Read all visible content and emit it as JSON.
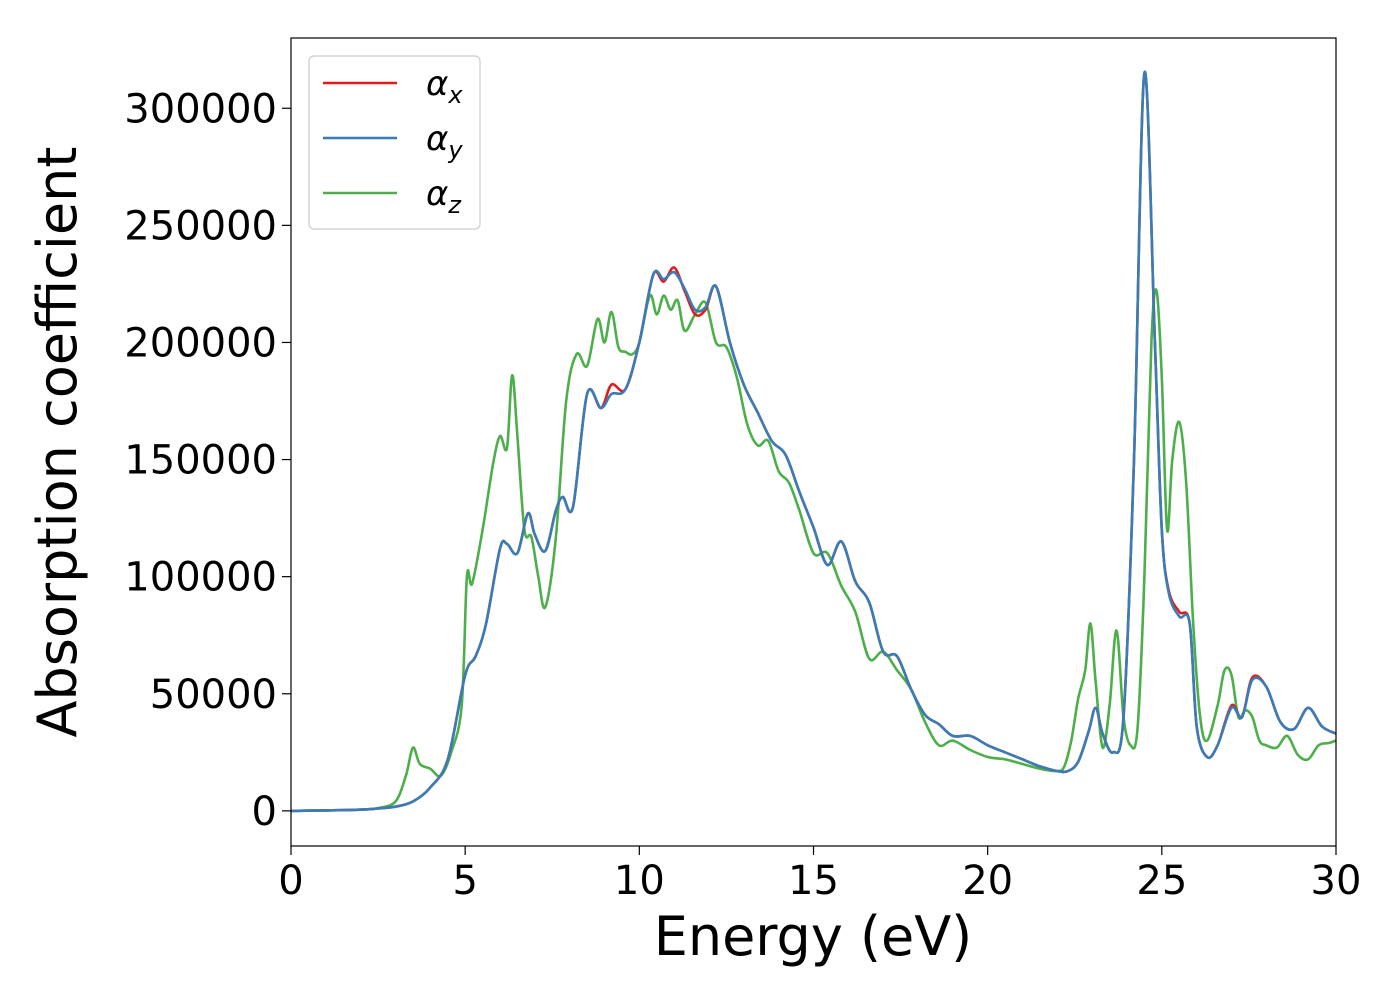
{
  "chart_data": {
    "type": "line",
    "title": "",
    "xlabel": "Energy (eV)",
    "ylabel": "Absorption coefficient",
    "xlim": [
      0,
      30
    ],
    "ylim": [
      -15000,
      330000
    ],
    "xticks": [
      0,
      5,
      10,
      15,
      20,
      25,
      30
    ],
    "xtick_labels": [
      "0",
      "5",
      "10",
      "15",
      "20",
      "25",
      "30"
    ],
    "yticks": [
      0,
      50000,
      100000,
      150000,
      200000,
      250000,
      300000
    ],
    "ytick_labels": [
      "0",
      "50000",
      "100000",
      "150000",
      "200000",
      "250000",
      "300000"
    ],
    "grid": false,
    "legend_position": "top-left",
    "series": [
      {
        "name": "αx",
        "symbol": "α",
        "subscript": "x",
        "color": "#e41a1c",
        "x": [
          0,
          1,
          2,
          2.5,
          3,
          3.5,
          4,
          4.5,
          5,
          5.3,
          5.6,
          6,
          6.2,
          6.5,
          6.8,
          7,
          7.3,
          7.6,
          7.8,
          8.1,
          8.5,
          8.9,
          9.2,
          9.6,
          10,
          10.4,
          10.7,
          11,
          11.3,
          11.6,
          11.9,
          12.2,
          12.6,
          13,
          13.4,
          13.8,
          14.2,
          14.6,
          15,
          15.4,
          15.8,
          16.2,
          16.6,
          17,
          17.4,
          17.8,
          18.2,
          18.6,
          19,
          19.5,
          20,
          20.5,
          21,
          21.5,
          22,
          22.3,
          22.6,
          22.9,
          23.1,
          23.3,
          23.6,
          23.9,
          24.2,
          24.5,
          24.8,
          25,
          25.2,
          25.5,
          25.8,
          26,
          26.3,
          26.6,
          27,
          27.3,
          27.6,
          28,
          28.4,
          28.8,
          29.2,
          29.6,
          30
        ],
        "y": [
          0,
          200,
          500,
          1000,
          1800,
          4000,
          10000,
          22000,
          58000,
          66000,
          80000,
          112000,
          114000,
          110000,
          127000,
          118000,
          111000,
          128000,
          134000,
          130000,
          178000,
          172000,
          182000,
          180000,
          200000,
          229000,
          226000,
          232000,
          222000,
          212000,
          214000,
          224000,
          200000,
          182000,
          170000,
          158000,
          152000,
          136000,
          121000,
          105000,
          115000,
          98000,
          89000,
          68000,
          66000,
          52000,
          41000,
          37000,
          32000,
          32000,
          28000,
          25000,
          22000,
          19000,
          17000,
          17000,
          21000,
          34000,
          44000,
          33000,
          25000,
          40000,
          150000,
          315000,
          200000,
          120000,
          94000,
          85000,
          80000,
          36000,
          23000,
          28000,
          45000,
          40000,
          57000,
          53000,
          38000,
          35000,
          44000,
          36000,
          33000
        ]
      },
      {
        "name": "αy",
        "symbol": "α",
        "subscript": "y",
        "color": "#377eb8",
        "x": [
          0,
          1,
          2,
          2.5,
          3,
          3.5,
          4,
          4.5,
          5,
          5.3,
          5.6,
          6,
          6.2,
          6.5,
          6.8,
          7,
          7.3,
          7.6,
          7.8,
          8.1,
          8.5,
          8.9,
          9.2,
          9.6,
          10,
          10.4,
          10.7,
          11,
          11.3,
          11.6,
          11.9,
          12.2,
          12.6,
          13,
          13.4,
          13.8,
          14.2,
          14.6,
          15,
          15.4,
          15.8,
          16.2,
          16.6,
          17,
          17.4,
          17.8,
          18.2,
          18.6,
          19,
          19.5,
          20,
          20.5,
          21,
          21.5,
          22,
          22.3,
          22.6,
          22.9,
          23.1,
          23.3,
          23.6,
          23.9,
          24.2,
          24.5,
          24.8,
          25,
          25.2,
          25.5,
          25.8,
          26,
          26.3,
          26.6,
          27,
          27.3,
          27.6,
          28,
          28.4,
          28.8,
          29.2,
          29.6,
          30
        ],
        "y": [
          0,
          200,
          500,
          1000,
          1800,
          4000,
          10000,
          22000,
          58000,
          66000,
          80000,
          112000,
          114000,
          110000,
          127000,
          118000,
          111000,
          128000,
          134000,
          130000,
          178000,
          172000,
          178000,
          180000,
          200000,
          229000,
          227000,
          230000,
          223000,
          214000,
          215000,
          224000,
          200000,
          182000,
          170000,
          158000,
          152000,
          136000,
          121000,
          105000,
          115000,
          98000,
          89000,
          68000,
          66000,
          52000,
          41000,
          37000,
          32000,
          32000,
          28000,
          25000,
          22000,
          19000,
          17000,
          17000,
          21000,
          34000,
          44000,
          33000,
          25000,
          40000,
          150000,
          315000,
          200000,
          120000,
          93000,
          83000,
          80000,
          36000,
          23000,
          28000,
          44000,
          40000,
          56000,
          53000,
          38000,
          35000,
          44000,
          36000,
          33000
        ]
      },
      {
        "name": "αz",
        "symbol": "α",
        "subscript": "z",
        "color": "#4daf4a",
        "x": [
          0,
          1,
          2,
          2.5,
          3,
          3.3,
          3.5,
          3.7,
          4,
          4.3,
          4.6,
          4.9,
          5.05,
          5.2,
          5.5,
          5.8,
          6,
          6.2,
          6.35,
          6.5,
          6.7,
          6.9,
          7.1,
          7.3,
          7.6,
          7.9,
          8.2,
          8.5,
          8.8,
          9,
          9.2,
          9.4,
          9.6,
          9.8,
          10,
          10.3,
          10.5,
          10.7,
          10.9,
          11.1,
          11.3,
          11.6,
          11.9,
          12.2,
          12.5,
          12.8,
          13.1,
          13.4,
          13.7,
          14,
          14.3,
          14.6,
          15,
          15.4,
          15.8,
          16.2,
          16.6,
          17,
          17.4,
          17.8,
          18.2,
          18.6,
          19,
          19.5,
          20,
          20.5,
          21,
          21.5,
          22,
          22.2,
          22.4,
          22.6,
          22.8,
          22.95,
          23.1,
          23.3,
          23.5,
          23.7,
          23.9,
          24.1,
          24.3,
          24.5,
          24.7,
          24.85,
          25,
          25.15,
          25.3,
          25.5,
          25.7,
          25.9,
          26.1,
          26.3,
          26.6,
          26.8,
          27,
          27.2,
          27.4,
          27.6,
          27.8,
          28,
          28.3,
          28.6,
          28.9,
          29.2,
          29.5,
          29.8,
          30
        ],
        "y": [
          0,
          200,
          600,
          1200,
          4000,
          15000,
          27000,
          20000,
          18000,
          15000,
          25000,
          45000,
          100000,
          97000,
          120000,
          148000,
          160000,
          155000,
          186000,
          160000,
          120000,
          117000,
          100000,
          87000,
          116000,
          175000,
          195000,
          190000,
          210000,
          200000,
          213000,
          198000,
          196000,
          195000,
          200000,
          220000,
          212000,
          220000,
          214000,
          218000,
          205000,
          212000,
          217000,
          200000,
          198000,
          185000,
          165000,
          156000,
          158000,
          145000,
          140000,
          128000,
          110000,
          110000,
          96000,
          85000,
          65000,
          68000,
          60000,
          52000,
          38000,
          28000,
          30000,
          26000,
          23000,
          22000,
          20000,
          18000,
          17000,
          19000,
          30000,
          48000,
          60000,
          80000,
          55000,
          27000,
          45000,
          77000,
          40000,
          28000,
          35000,
          100000,
          200000,
          222000,
          185000,
          120000,
          150000,
          166000,
          140000,
          80000,
          40000,
          30000,
          45000,
          60000,
          58000,
          40000,
          43000,
          40000,
          30000,
          28000,
          27000,
          32000,
          24000,
          22000,
          28000,
          29000,
          30000
        ]
      }
    ]
  }
}
